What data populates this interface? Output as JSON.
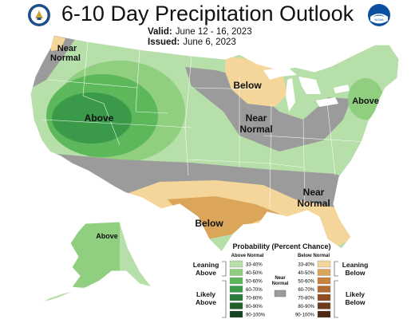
{
  "header": {
    "title": "6-10 Day Precipitation Outlook",
    "valid_label": "Valid:",
    "valid_value": "June 12 - 16, 2023",
    "issued_label": "Issued:",
    "issued_value": "June 6, 2023"
  },
  "logos": {
    "left": "doc-seal-icon",
    "right": "noaa-logo-icon",
    "right_text": "NOAA"
  },
  "map_labels": {
    "near_normal_nw_1": "Near",
    "near_normal_nw_2": "Normal",
    "above_west": "Above",
    "below_north": "Below",
    "near_normal_mw_1": "Near",
    "near_normal_mw_2": "Normal",
    "above_ne": "Above",
    "near_normal_se_1": "Near",
    "near_normal_se_2": "Normal",
    "below_south": "Below",
    "above_alaska": "Above"
  },
  "legend": {
    "title": "Probability (Percent Chance)",
    "above_header": "Above Normal",
    "below_header": "Below Normal",
    "near_normal_1": "Near",
    "near_normal_2": "Normal",
    "leaning_above_1": "Leaning",
    "leaning_above_2": "Above",
    "likely_above_1": "Likely",
    "likely_above_2": "Above",
    "leaning_below_1": "Leaning",
    "leaning_below_2": "Below",
    "likely_below_1": "Likely",
    "likely_below_2": "Below",
    "above": [
      {
        "pct": "33-40%",
        "color": "#b7dfa9"
      },
      {
        "pct": "40-50%",
        "color": "#8fcf7f"
      },
      {
        "pct": "50-60%",
        "color": "#5cb85a"
      },
      {
        "pct": "60-70%",
        "color": "#3a9a4a"
      },
      {
        "pct": "70-80%",
        "color": "#2a7a3a"
      },
      {
        "pct": "80-90%",
        "color": "#205e2c"
      },
      {
        "pct": "90-100%",
        "color": "#154220"
      }
    ],
    "below": [
      {
        "pct": "33-40%",
        "color": "#f4d59a"
      },
      {
        "pct": "40-50%",
        "color": "#dba659"
      },
      {
        "pct": "50-60%",
        "color": "#c9823e"
      },
      {
        "pct": "60-70%",
        "color": "#b36a31"
      },
      {
        "pct": "70-80%",
        "color": "#8e4e22"
      },
      {
        "pct": "80-90%",
        "color": "#6e3a18"
      },
      {
        "pct": "90-100%",
        "color": "#4e2810"
      }
    ],
    "near_color": "#9b9b9b"
  }
}
